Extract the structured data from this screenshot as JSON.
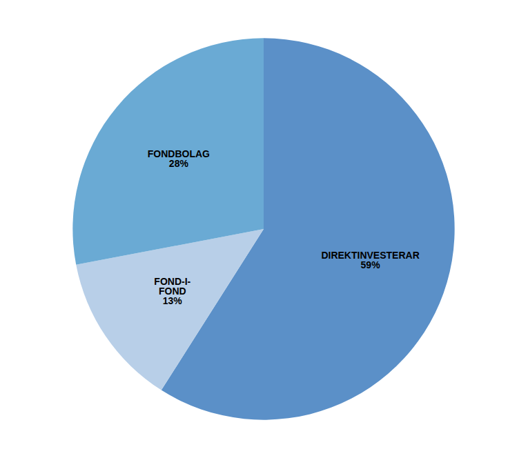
{
  "chart_data": {
    "type": "pie",
    "categories": [
      "DIREKTINVESTERAR",
      "FOND-I-\nFOND",
      "FONDBOLAG"
    ],
    "values": [
      59,
      13,
      28
    ],
    "value_labels": [
      "59%",
      "13%",
      "28%"
    ],
    "data_labels": true,
    "colors": [
      "#5B90C8",
      "#B8CFE8",
      "#6AAAD4"
    ]
  }
}
